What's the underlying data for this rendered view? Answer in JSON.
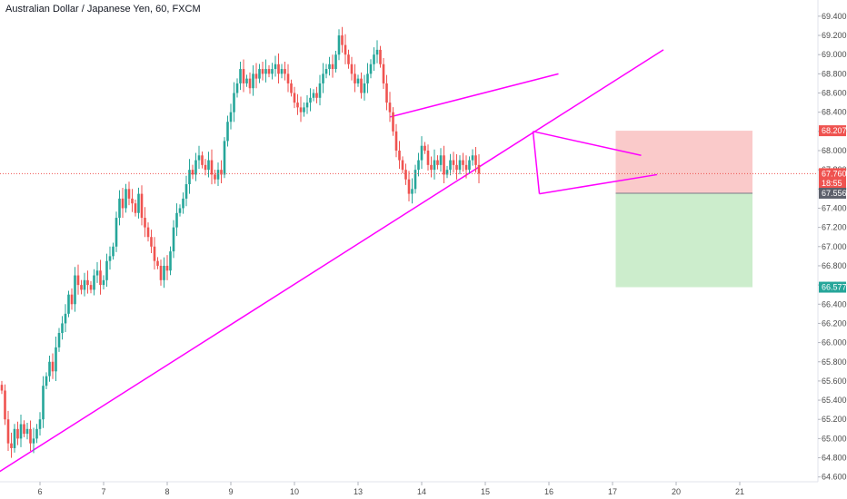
{
  "chart_data": {
    "type": "candlestick",
    "title": "Australian Dollar / Japanese Yen, 60, FXCM",
    "ylim": [
      64.55,
      69.55
    ],
    "y_ticks": [
      "64.600",
      "64.800",
      "65.000",
      "65.200",
      "65.400",
      "65.600",
      "65.800",
      "66.000",
      "66.200",
      "66.400",
      "66.600",
      "66.800",
      "67.000",
      "67.200",
      "67.400",
      "67.600",
      "67.800",
      "68.000",
      "68.200",
      "68.400",
      "68.600",
      "68.800",
      "69.000",
      "69.200",
      "69.400"
    ],
    "x_ticks": [
      "6",
      "7",
      "8",
      "9",
      "10",
      "13",
      "14",
      "15",
      "16",
      "17",
      "20",
      "21"
    ],
    "x_tick_index": [
      12,
      32,
      52,
      72,
      92,
      112,
      132,
      152,
      172,
      192,
      212,
      232
    ],
    "grid": false,
    "colors": {
      "up": "#26a69a",
      "down": "#ef5350",
      "trend": "#ff00ff",
      "price_line": "#ef5350",
      "stop_zone": "#f8b8b8",
      "target_zone": "#bfe8bf"
    },
    "closes": [
      65.5,
      65.2,
      64.95,
      64.9,
      65.1,
      65.0,
      65.15,
      65.05,
      65.1,
      64.95,
      65.0,
      65.1,
      65.2,
      65.55,
      65.65,
      65.8,
      65.7,
      65.95,
      66.1,
      66.2,
      66.3,
      66.5,
      66.4,
      66.7,
      66.6,
      66.55,
      66.65,
      66.6,
      66.55,
      66.7,
      66.75,
      66.6,
      66.65,
      66.85,
      66.9,
      67.0,
      67.3,
      67.5,
      67.4,
      67.6,
      67.5,
      67.45,
      67.35,
      67.55,
      67.3,
      67.2,
      67.1,
      67.0,
      66.85,
      66.8,
      66.65,
      66.8,
      66.75,
      66.95,
      67.2,
      67.35,
      67.4,
      67.5,
      67.65,
      67.8,
      67.75,
      67.9,
      67.95,
      67.85,
      67.8,
      67.9,
      67.75,
      67.7,
      67.8,
      67.75,
      68.1,
      68.3,
      68.4,
      68.6,
      68.7,
      68.85,
      68.7,
      68.75,
      68.65,
      68.8,
      68.75,
      68.85,
      68.8,
      68.85,
      68.8,
      68.85,
      68.9,
      68.8,
      68.85,
      68.8,
      68.7,
      68.6,
      68.5,
      68.45,
      68.4,
      68.45,
      68.5,
      68.55,
      68.6,
      68.55,
      68.7,
      68.8,
      68.85,
      68.9,
      68.85,
      69.0,
      69.2,
      69.1,
      69.0,
      68.9,
      68.8,
      68.7,
      68.75,
      68.6,
      68.7,
      68.8,
      68.9,
      69.0,
      69.05,
      68.9,
      68.7,
      68.5,
      68.4,
      68.2,
      68.0,
      67.9,
      67.8,
      67.7,
      67.55,
      67.6,
      67.8,
      67.9,
      68.05,
      68.0,
      67.85,
      67.8,
      67.9,
      67.85,
      67.95,
      67.75,
      67.8,
      67.9,
      67.85,
      67.8,
      67.9,
      67.85,
      67.8,
      67.9,
      67.95,
      67.85,
      67.76
    ],
    "trendlines": [
      {
        "name": "rising-support",
        "x1": -1,
        "y1": 64.65,
        "x2": 208,
        "y2": 69.05
      },
      {
        "name": "neckline",
        "x1": 122,
        "y1": 68.35,
        "x2": 175,
        "y2": 68.8
      },
      {
        "name": "triangle-top",
        "x1": 167,
        "y1": 68.2,
        "x2": 201,
        "y2": 67.95
      },
      {
        "name": "triangle-bottom",
        "x1": 169,
        "y1": 67.55,
        "x2": 206,
        "y2": 67.75
      },
      {
        "name": "triangle-left",
        "x1": 167,
        "y1": 68.2,
        "x2": 169,
        "y2": 67.55
      }
    ],
    "position": {
      "x_start": 193,
      "x_end": 236,
      "stop": 68.207,
      "entry": 67.556,
      "target": 66.577
    },
    "current_price": 67.76,
    "badges": [
      {
        "text": "68.207",
        "value": 68.207,
        "color": "#ef5350"
      },
      {
        "text": "67.760",
        "value": 67.76,
        "color": "#ef5350"
      },
      {
        "text": "18:55",
        "value": 67.66,
        "color": "#ef5350"
      },
      {
        "text": "67.556",
        "value": 67.556,
        "color": "#5d606b"
      },
      {
        "text": "66.577",
        "value": 66.577,
        "color": "#26a69a"
      }
    ]
  }
}
